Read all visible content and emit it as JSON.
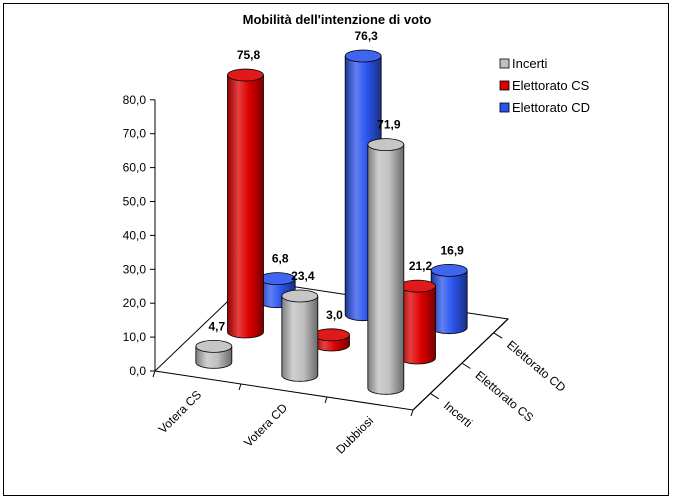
{
  "chart_data": {
    "type": "bar",
    "style": "3d-cylinder",
    "title": "Mobilità dell'intenzione di voto",
    "categories": [
      "Votera CS",
      "Votera CD",
      "Dubbiosi"
    ],
    "series": [
      {
        "name": "Incerti",
        "values": [
          4.7,
          23.4,
          71.9
        ],
        "color": "#c0c0c0",
        "value_labels": [
          "4,7",
          "23,4",
          "71,9"
        ]
      },
      {
        "name": "Elettorato CS",
        "values": [
          75.8,
          3.0,
          21.2
        ],
        "color": "#dd0000",
        "value_labels": [
          "75,8",
          "3,0",
          "21,2"
        ]
      },
      {
        "name": "Elettorato CD",
        "values": [
          6.8,
          76.3,
          16.9
        ],
        "color": "#2b55ee",
        "value_labels": [
          "6,8",
          "76,3",
          "16,9"
        ]
      }
    ],
    "depth_labels": [
      "Incerti",
      "Elettorato CS",
      "Elettorato CD"
    ],
    "y_ticks": [
      "0,0",
      "10,0",
      "20,0",
      "30,0",
      "40,0",
      "50,0",
      "60,0",
      "70,0",
      "80,0"
    ],
    "ylim": [
      0,
      80
    ],
    "legend_position": "top-right",
    "grid": false
  }
}
